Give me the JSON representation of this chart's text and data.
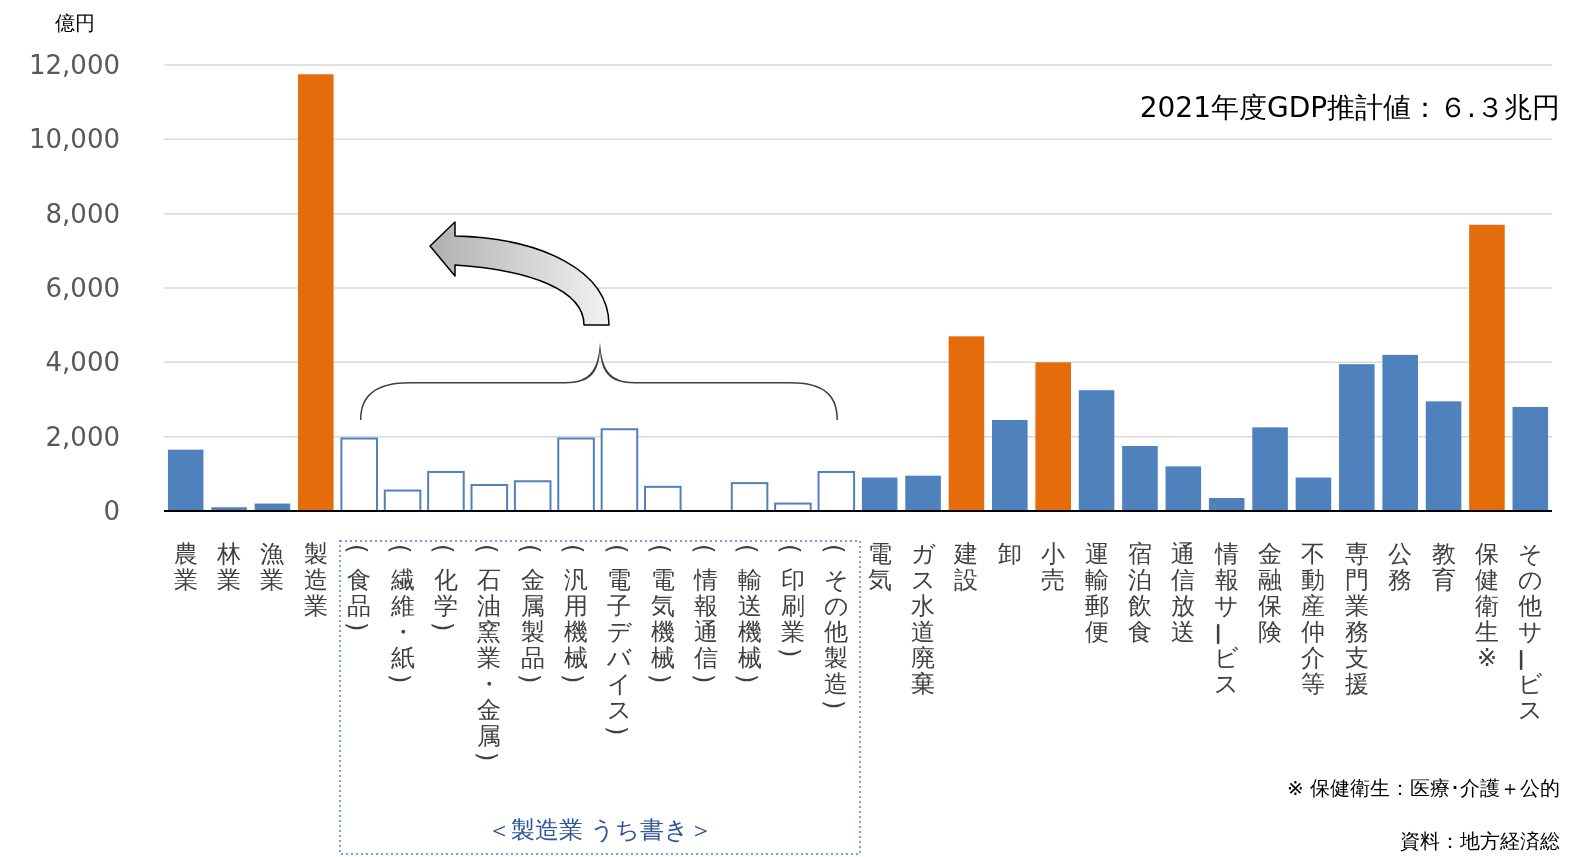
{
  "chart_data": {
    "type": "bar",
    "ylabel": "億円",
    "categories": [
      "農業",
      "林業",
      "漁業",
      "製造業",
      "(食品)",
      "(繊維・紙)",
      "(化学)",
      "(石油窯業・金属)",
      "(金属製品)",
      "(汎用機械)",
      "(電子デバイス)",
      "(電気機械)",
      "(情報通信)",
      "(輸送機械)",
      "(印刷業)",
      "(その他製造)",
      "電気",
      "ガス水道廃棄",
      "建設",
      "卸",
      "小売",
      "運輸郵便",
      "宿泊飲食",
      "通信放送",
      "情報サービス",
      "金融保険",
      "不動産仲介等",
      "専門業務支援",
      "公務",
      "教育",
      "保健衛生※",
      "その他サービス"
    ],
    "values": [
      1650,
      100,
      200,
      11750,
      1950,
      550,
      1050,
      700,
      800,
      1950,
      2200,
      650,
      0,
      750,
      200,
      1050,
      900,
      950,
      4700,
      2450,
      4000,
      3250,
      1750,
      1200,
      350,
      2250,
      900,
      3950,
      4200,
      2950,
      7700,
      2800
    ],
    "colors": [
      "#4f81bd",
      "#4f81bd",
      "#4f81bd",
      "#e46c0a",
      "#ffffff",
      "#ffffff",
      "#ffffff",
      "#ffffff",
      "#ffffff",
      "#ffffff",
      "#ffffff",
      "#ffffff",
      "#ffffff",
      "#ffffff",
      "#ffffff",
      "#ffffff",
      "#4f81bd",
      "#4f81bd",
      "#e46c0a",
      "#4f81bd",
      "#e46c0a",
      "#4f81bd",
      "#4f81bd",
      "#4f81bd",
      "#4f81bd",
      "#4f81bd",
      "#4f81bd",
      "#4f81bd",
      "#4f81bd",
      "#4f81bd",
      "#e46c0a",
      "#4f81bd"
    ],
    "ylim": [
      0,
      12000
    ],
    "yticks": [
      {
        "value": 0,
        "label": "0"
      },
      {
        "value": 2000,
        "label": "2,000"
      },
      {
        "value": 4000,
        "label": "4,000"
      },
      {
        "value": 6000,
        "label": "6,000"
      },
      {
        "value": 8000,
        "label": "8,000"
      },
      {
        "value": 10000,
        "label": "10,000"
      },
      {
        "value": 12000,
        "label": "12,000"
      }
    ],
    "grid": "y",
    "annotations": [
      "2021年度GDP推計値：６.３兆円",
      "＜製造業 うち書き＞",
      "※ 保健衛生：医療･介護＋公的",
      "資料：地方経済総"
    ]
  }
}
